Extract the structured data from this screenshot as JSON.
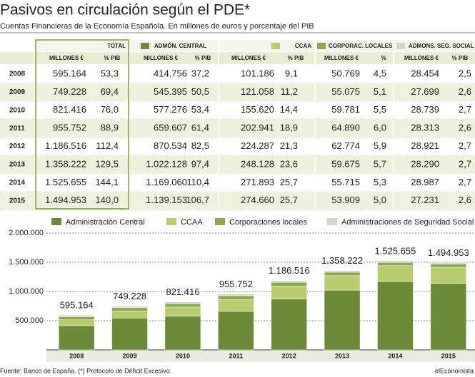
{
  "header": {
    "title": "Pasivos en circulación según el PDE*",
    "subtitle": "Cuentas Financieras de la Economía Española. En millones de euros y porcentaje del PIB"
  },
  "table": {
    "groups": [
      "TOTAL",
      "ADMÓN. CENTRAL",
      "CCAA",
      "CORPORAC. LOCALES",
      "ADMONS. SEG. SOCIAL"
    ],
    "subheaders": [
      "MILLONES €",
      "% PIB",
      "MILLONES €",
      "% PIB",
      "MILLONES €",
      "% PIB",
      "MILLONES €",
      "%",
      "MILLONES €",
      "% PIB"
    ],
    "rows": [
      [
        "2008",
        "595.164",
        "53,3",
        "414.756",
        "37,2",
        "101.186",
        "9,1",
        "50.769",
        "4,5",
        "28.454",
        "2,5"
      ],
      [
        "2009",
        "749.228",
        "69,4",
        "545.395",
        "50,5",
        "121.058",
        "11,2",
        "55.075",
        "5,1",
        "27.699",
        "2,6"
      ],
      [
        "2010",
        "821.416",
        "76,0",
        "577.276",
        "53,4",
        "155.620",
        "14,4",
        "59.781",
        "5,5",
        "28.739",
        "2,7"
      ],
      [
        "2011",
        "955.752",
        "88,9",
        "659.607",
        "61,4",
        "202.941",
        "18,9",
        "64.890",
        "6,0",
        "28.313",
        "2,6"
      ],
      [
        "2012",
        "1.186.516",
        "112,4",
        "870.534",
        "82,5",
        "224.287",
        "21,3",
        "62.774",
        "5,9",
        "28.921",
        "2,7"
      ],
      [
        "2013",
        "1.358.222",
        "129,5",
        "1.022.128",
        "97,4",
        "248.128",
        "23,6",
        "59.675",
        "5,7",
        "28.290",
        "2,7"
      ],
      [
        "2014",
        "1.525.655",
        "144,1",
        "1.169.060",
        "110,4",
        "271.893",
        "25,7",
        "55.715",
        "5,3",
        "28.987",
        "2,7"
      ],
      [
        "2015",
        "1.494.953",
        "140,0",
        "1.139.153",
        "106,7",
        "274.660",
        "25,7",
        "53.909",
        "5,0",
        "27.231",
        "2,6"
      ]
    ]
  },
  "chart_data": {
    "type": "stacked_bar",
    "categories": [
      "2008",
      "2009",
      "2010",
      "2011",
      "2012",
      "2013",
      "2014",
      "2015"
    ],
    "series": [
      {
        "name": "Administración Central",
        "color": "#6b8a3a",
        "values": [
          414756,
          545395,
          577276,
          659607,
          870534,
          1022128,
          1169060,
          1139153
        ]
      },
      {
        "name": "CCAA",
        "color": "#b9cc6e",
        "values": [
          101186,
          121058,
          155620,
          202941,
          224287,
          248128,
          271893,
          274660
        ]
      },
      {
        "name": "Corporaciones locales",
        "color": "#8ba84c",
        "values": [
          50769,
          55075,
          59781,
          64890,
          62774,
          59675,
          55715,
          53909
        ]
      },
      {
        "name": "Administraciones de Seguridad Social",
        "color": "#d3d4cb",
        "values": [
          28454,
          27699,
          28739,
          28313,
          28921,
          28290,
          28987,
          27231
        ]
      }
    ],
    "totals": {
      "values": [
        595164,
        749228,
        821416,
        955752,
        1186516,
        1358222,
        1525655,
        1494953
      ],
      "value_labels": [
        "595.164",
        "749.228",
        "821.416",
        "955.752",
        "1.186.516",
        "1.358.222",
        "1.525.655",
        "1.494.953"
      ]
    },
    "ylim": [
      0,
      2000000
    ],
    "yticks": [
      {
        "value": 500000,
        "label": "500.000"
      },
      {
        "value": 1000000,
        "label": "1.000.000"
      },
      {
        "value": 1500000,
        "label": "1.500.000"
      },
      {
        "value": 2000000,
        "label": "2.000.000"
      }
    ],
    "grid": true
  },
  "footer": {
    "source": "Fuente: Banco de España. (*) Protocolo de Déficit Excesivo.",
    "brand": "elEconomista"
  }
}
